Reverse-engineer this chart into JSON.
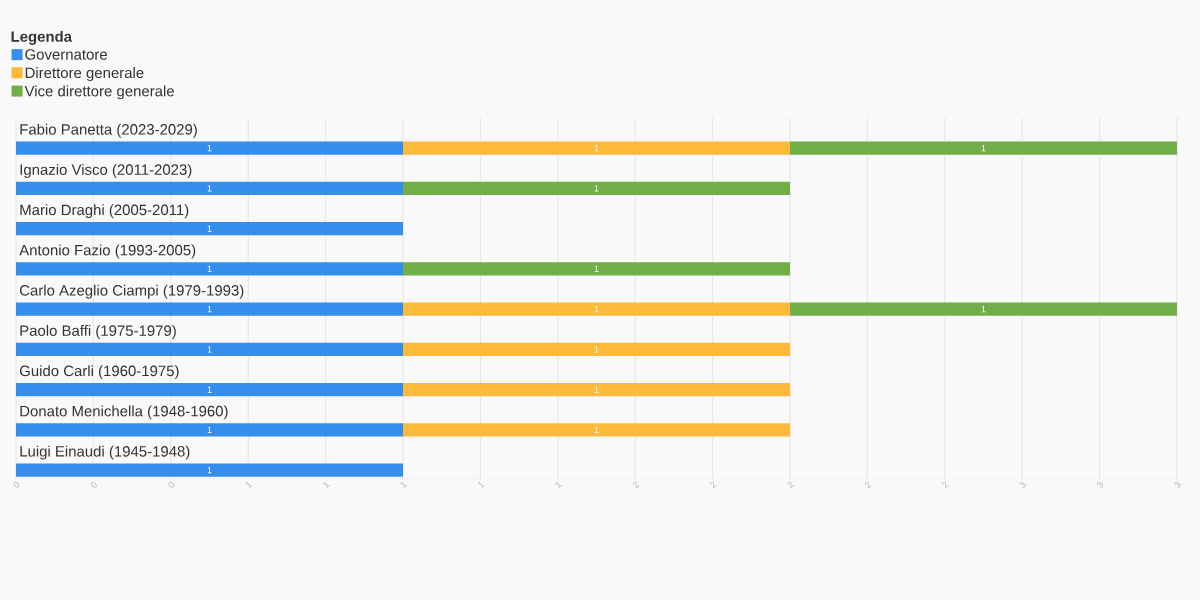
{
  "chart_data": {
    "type": "bar",
    "orientation": "horizontal",
    "stacked": true,
    "legend_title": "Legenda",
    "legend": "top left",
    "grid": "x",
    "data_labels": true,
    "categories": [
      "Fabio Panetta (2023-2029)",
      "Ignazio Visco (2011-2023)",
      "Mario Draghi (2005-2011)",
      "Antonio Fazio (1993-2005)",
      "Carlo Azeglio Ciampi (1979-1993)",
      "Paolo Baffi (1975-1979)",
      "Guido Carli (1960-1975)",
      "Donato Menichella (1948-1960)",
      "Luigi Einaudi (1945-1948)"
    ],
    "series": [
      {
        "name": "Governatore",
        "color": "#358eeb",
        "values": [
          1,
          1,
          1,
          1,
          1,
          1,
          1,
          1,
          1
        ]
      },
      {
        "name": "Direttore generale",
        "color": "#fdb93a",
        "values": [
          1,
          null,
          null,
          null,
          1,
          1,
          1,
          1,
          null
        ]
      },
      {
        "name": "Vice direttore generale",
        "color": "#72ae47",
        "values": [
          1,
          1,
          null,
          1,
          1,
          null,
          null,
          null,
          null
        ]
      }
    ],
    "xlim": [
      0,
      3
    ],
    "xticks": [
      {
        "value": 0,
        "label": "0"
      },
      {
        "value": 0.2,
        "label": "0"
      },
      {
        "value": 0.4,
        "label": "0"
      },
      {
        "value": 0.6,
        "label": "1"
      },
      {
        "value": 0.8,
        "label": "1"
      },
      {
        "value": 1.0,
        "label": "1"
      },
      {
        "value": 1.2,
        "label": "1"
      },
      {
        "value": 1.4,
        "label": "1"
      },
      {
        "value": 1.6,
        "label": "2"
      },
      {
        "value": 1.8,
        "label": "2"
      },
      {
        "value": 2.0,
        "label": "2"
      },
      {
        "value": 2.2,
        "label": "2"
      },
      {
        "value": 2.4,
        "label": "2"
      },
      {
        "value": 2.6,
        "label": "3"
      },
      {
        "value": 2.8,
        "label": "3"
      },
      {
        "value": 3.0,
        "label": "3"
      }
    ]
  }
}
